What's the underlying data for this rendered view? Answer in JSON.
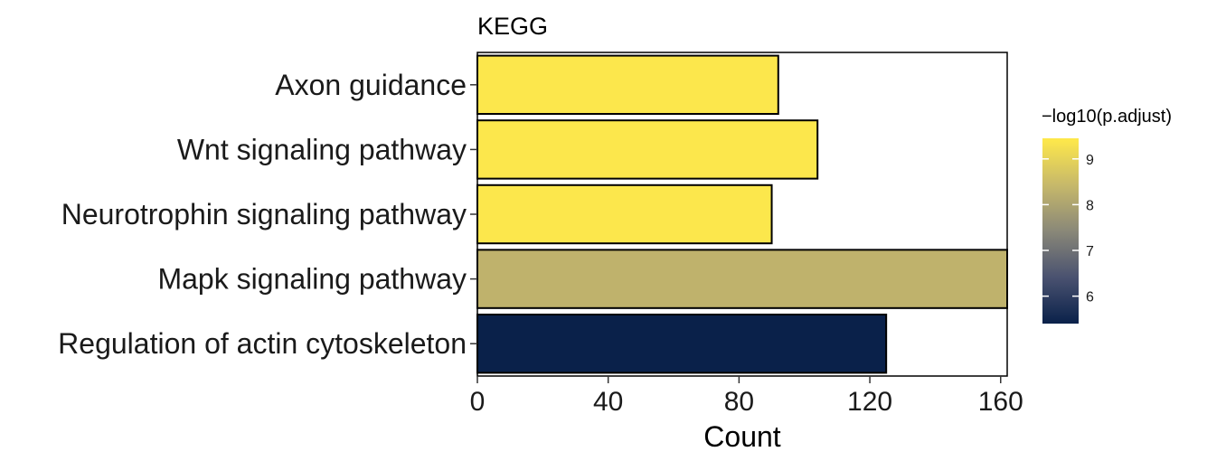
{
  "chart_data": {
    "type": "bar",
    "orientation": "horizontal",
    "title": "KEGG",
    "xlabel": "Count",
    "ylabel": "",
    "xlim": [
      0,
      162
    ],
    "xticks": [
      0,
      40,
      80,
      120,
      160
    ],
    "grid": false,
    "categories": [
      "Axon guidance",
      "Wnt signaling pathway",
      "Neurotrophin signaling pathway",
      "Mapk signaling pathway",
      "Regulation of actin cytoskeleton"
    ],
    "values": [
      92,
      104,
      90,
      163,
      125
    ],
    "color_values": [
      9.4,
      9.4,
      9.4,
      8.3,
      5.4
    ],
    "legend": {
      "title": "−log10(p.adjust)",
      "placement": "right",
      "range": [
        5.4,
        9.45
      ],
      "ticks": [
        6,
        7,
        8,
        9
      ],
      "colors": [
        "#0a214a",
        "#4a5270",
        "#8a8878",
        "#c7b96a",
        "#ffe94a"
      ]
    }
  }
}
